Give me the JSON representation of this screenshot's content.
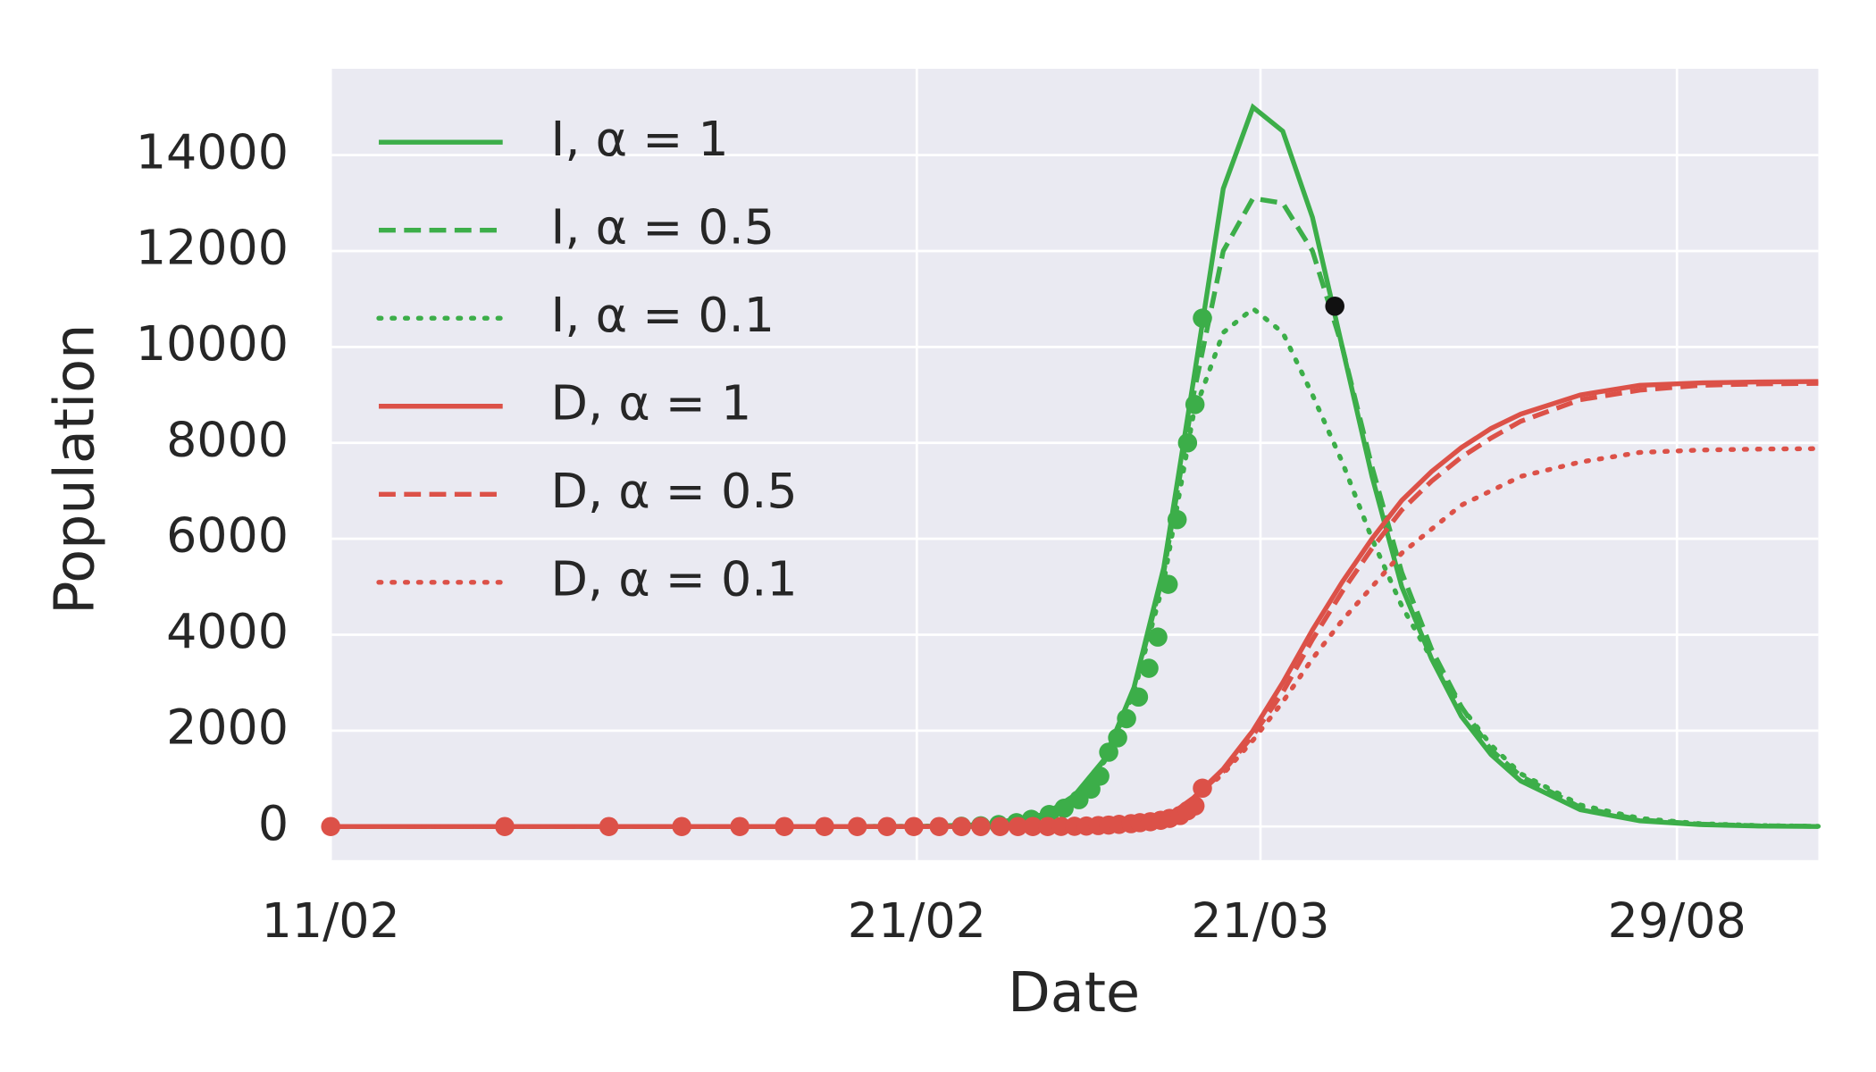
{
  "chart_data": {
    "type": "line",
    "xlabel": "Date",
    "ylabel": "Population",
    "xlim": [
      0,
      100
    ],
    "ylim": [
      -700,
      15800
    ],
    "xticks": [
      {
        "value": 0,
        "label": "11/02"
      },
      {
        "value": 39.4,
        "label": "21/02"
      },
      {
        "value": 62.5,
        "label": "21/03"
      },
      {
        "value": 90.5,
        "label": "29/08"
      }
    ],
    "yticks": [
      0,
      2000,
      4000,
      6000,
      8000,
      10000,
      12000,
      14000
    ],
    "grid": true,
    "legend": "upper left",
    "x": [
      0,
      10,
      20,
      30,
      35,
      40,
      44,
      48,
      50,
      52,
      54,
      56,
      58,
      60,
      62,
      64,
      66,
      68,
      70,
      72,
      74,
      76,
      78,
      80,
      84,
      88,
      92,
      96,
      100
    ],
    "series": [
      {
        "name": "I, α = 1",
        "color": "#3cae49",
        "dash": "solid",
        "values": [
          0,
          0,
          0,
          0,
          0,
          5,
          40,
          250,
          650,
          1400,
          2900,
          5400,
          9300,
          13300,
          15000,
          14500,
          12700,
          10000,
          7300,
          5000,
          3500,
          2300,
          1500,
          950,
          350,
          120,
          40,
          10,
          0
        ]
      },
      {
        "name": "I, α = 0.5",
        "color": "#3cae49",
        "dash": "dashed",
        "values": [
          0,
          0,
          0,
          0,
          0,
          5,
          40,
          250,
          640,
          1380,
          2850,
          5300,
          9000,
          12000,
          13100,
          13000,
          12000,
          10000,
          7500,
          5300,
          3700,
          2500,
          1600,
          1050,
          400,
          140,
          50,
          15,
          5
        ]
      },
      {
        "name": "I, α = 0.1",
        "color": "#3cae49",
        "dash": "dotted",
        "values": [
          0,
          0,
          0,
          0,
          0,
          5,
          40,
          250,
          620,
          1350,
          2800,
          5100,
          8600,
          10300,
          10800,
          10300,
          9000,
          7600,
          6000,
          4600,
          3500,
          2500,
          1700,
          1100,
          450,
          170,
          60,
          20,
          5
        ]
      },
      {
        "name": "D, α = 1",
        "color": "#dc5148",
        "dash": "solid",
        "values": [
          0,
          0,
          0,
          0,
          0,
          0,
          2,
          10,
          20,
          40,
          80,
          150,
          600,
          1200,
          2000,
          3000,
          4100,
          5100,
          6000,
          6800,
          7400,
          7900,
          8300,
          8600,
          9000,
          9200,
          9250,
          9270,
          9280
        ]
      },
      {
        "name": "D, α = 0.5",
        "color": "#dc5148",
        "dash": "dashed",
        "values": [
          0,
          0,
          0,
          0,
          0,
          0,
          2,
          10,
          20,
          40,
          80,
          150,
          590,
          1150,
          1900,
          2800,
          3900,
          4900,
          5800,
          6600,
          7200,
          7700,
          8100,
          8450,
          8900,
          9100,
          9200,
          9230,
          9240
        ]
      },
      {
        "name": "D, α = 0.1",
        "color": "#dc5148",
        "dash": "dotted",
        "values": [
          0,
          0,
          0,
          0,
          0,
          0,
          2,
          10,
          20,
          40,
          80,
          150,
          580,
          1100,
          1800,
          2600,
          3500,
          4300,
          5000,
          5700,
          6200,
          6700,
          7000,
          7300,
          7600,
          7800,
          7850,
          7870,
          7880
        ]
      }
    ],
    "points": [
      {
        "color": "#3cae49",
        "x": [
          42.4,
          43.7,
          44.9,
          46.1,
          47.1,
          48.3,
          49.3,
          50.3,
          51.1,
          51.7,
          52.3,
          52.9,
          53.5,
          54.3,
          55.0,
          55.6,
          56.3,
          56.9,
          57.6,
          58.1,
          58.6
        ],
        "values": [
          5,
          15,
          40,
          80,
          150,
          250,
          380,
          560,
          780,
          1050,
          1550,
          1850,
          2250,
          2700,
          3300,
          3950,
          5050,
          6400,
          8000,
          8800,
          10600
        ]
      },
      {
        "color": "#dc5148",
        "x": [
          0,
          11.7,
          18.7,
          23.6,
          27.5,
          30.5,
          33.2,
          35.4,
          37.4,
          39.2,
          40.9,
          42.4,
          43.7,
          45.0,
          46.2,
          47.2,
          48.2,
          49.1,
          50.0,
          50.8,
          51.6,
          52.3,
          53.0,
          53.8,
          54.4,
          55.1,
          55.8,
          56.4,
          57.1,
          57.6,
          58.1,
          58.6
        ],
        "values": [
          0,
          0,
          0,
          0,
          0,
          0,
          0,
          0,
          0,
          0,
          0,
          0,
          0,
          0,
          0,
          0,
          0,
          2,
          5,
          10,
          20,
          30,
          45,
          60,
          80,
          100,
          130,
          170,
          230,
          330,
          430,
          800
        ]
      },
      {
        "color": "#111111",
        "x": [
          67.5
        ],
        "values": [
          10850
        ]
      }
    ]
  }
}
